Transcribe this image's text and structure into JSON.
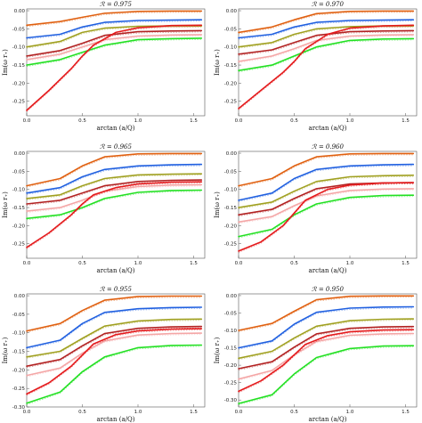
{
  "colors": {
    "red": "#e41a1c",
    "green": "#22e022",
    "pink": "#f4a6a6",
    "olive": "#a0a020",
    "darkred": "#b22222",
    "blue": "#2060e0",
    "orange": "#e06010",
    "black": "#111111"
  },
  "chart_data": [
    {
      "type": "line",
      "title": "ℛ = 0.975",
      "xlabel": "arctan (a/Q)",
      "ylabel": "Im(ω r₊)",
      "xlim": [
        0,
        1.6
      ],
      "ylim": [
        -0.29,
        0.005
      ],
      "xticks": [
        "0.0",
        "0.5",
        "1.0",
        "1.5"
      ],
      "yticks": [
        "0.00",
        "-0.05",
        "-0.10",
        "-0.15",
        "-0.20",
        "-0.25"
      ],
      "ytick_values": [
        0,
        -0.05,
        -0.1,
        -0.15,
        -0.2,
        -0.25
      ],
      "series": [
        {
          "color": "orange",
          "x": [
            0,
            0.3,
            0.5,
            0.7,
            1.0,
            1.3,
            1.57
          ],
          "y": [
            -0.04,
            -0.03,
            -0.018,
            -0.007,
            -0.002,
            -0.001,
            -0.001
          ]
        },
        {
          "color": "blue",
          "x": [
            0,
            0.3,
            0.5,
            0.7,
            1.0,
            1.3,
            1.57
          ],
          "y": [
            -0.075,
            -0.065,
            -0.045,
            -0.032,
            -0.027,
            -0.026,
            -0.025
          ]
        },
        {
          "color": "olive",
          "x": [
            0,
            0.3,
            0.5,
            0.7,
            1.0,
            1.3,
            1.57
          ],
          "y": [
            -0.1,
            -0.085,
            -0.06,
            -0.048,
            -0.043,
            -0.042,
            -0.042
          ]
        },
        {
          "color": "darkred",
          "x": [
            0,
            0.3,
            0.5,
            0.7,
            1.0,
            1.3,
            1.57
          ],
          "y": [
            -0.125,
            -0.11,
            -0.09,
            -0.068,
            -0.058,
            -0.056,
            -0.055
          ]
        },
        {
          "color": "pink",
          "x": [
            0,
            0.3,
            0.5,
            0.7,
            1.0,
            1.3,
            1.57
          ],
          "y": [
            -0.135,
            -0.12,
            -0.1,
            -0.08,
            -0.07,
            -0.067,
            -0.066
          ]
        },
        {
          "color": "green",
          "x": [
            0,
            0.3,
            0.5,
            0.7,
            1.0,
            1.3,
            1.57
          ],
          "y": [
            -0.15,
            -0.135,
            -0.115,
            -0.095,
            -0.08,
            -0.077,
            -0.076
          ]
        },
        {
          "color": "red",
          "x": [
            0,
            0.2,
            0.4,
            0.5,
            0.6,
            0.8,
            1.0,
            1.3,
            1.57
          ],
          "y": [
            -0.275,
            -0.22,
            -0.16,
            -0.125,
            -0.095,
            -0.06,
            -0.047,
            -0.041,
            -0.04
          ]
        }
      ]
    },
    {
      "type": "line",
      "title": "ℛ = 0.970",
      "xlabel": "arctan (a/Q)",
      "ylabel": "Im(ω r₊)",
      "xlim": [
        0,
        1.6
      ],
      "ylim": [
        -0.29,
        0.005
      ],
      "xticks": [
        "0.0",
        "0.5",
        "1.0",
        "1.5"
      ],
      "yticks": [
        "0.00",
        "-0.05",
        "-0.10",
        "-0.15",
        "-0.20",
        "-0.25"
      ],
      "ytick_values": [
        0,
        -0.05,
        -0.1,
        -0.15,
        -0.2,
        -0.25
      ],
      "series": [
        {
          "color": "orange",
          "x": [
            0,
            0.3,
            0.5,
            0.7,
            1.0,
            1.3,
            1.57
          ],
          "y": [
            -0.06,
            -0.045,
            -0.025,
            -0.008,
            -0.002,
            -0.001,
            -0.001
          ]
        },
        {
          "color": "blue",
          "x": [
            0,
            0.3,
            0.5,
            0.7,
            1.0,
            1.3,
            1.57
          ],
          "y": [
            -0.075,
            -0.065,
            -0.045,
            -0.032,
            -0.027,
            -0.026,
            -0.025
          ]
        },
        {
          "color": "olive",
          "x": [
            0,
            0.3,
            0.5,
            0.7,
            1.0,
            1.3,
            1.57
          ],
          "y": [
            -0.1,
            -0.088,
            -0.065,
            -0.05,
            -0.044,
            -0.042,
            -0.042
          ]
        },
        {
          "color": "darkred",
          "x": [
            0,
            0.3,
            0.5,
            0.7,
            1.0,
            1.3,
            1.57
          ],
          "y": [
            -0.12,
            -0.108,
            -0.088,
            -0.068,
            -0.058,
            -0.056,
            -0.055
          ]
        },
        {
          "color": "pink",
          "x": [
            0,
            0.3,
            0.5,
            0.7,
            1.0,
            1.3,
            1.57
          ],
          "y": [
            -0.14,
            -0.125,
            -0.105,
            -0.082,
            -0.07,
            -0.067,
            -0.066
          ]
        },
        {
          "color": "green",
          "x": [
            0,
            0.3,
            0.5,
            0.7,
            1.0,
            1.3,
            1.57
          ],
          "y": [
            -0.165,
            -0.15,
            -0.125,
            -0.1,
            -0.082,
            -0.078,
            -0.077
          ]
        },
        {
          "color": "red",
          "x": [
            0,
            0.2,
            0.4,
            0.5,
            0.6,
            0.8,
            1.0,
            1.3,
            1.57
          ],
          "y": [
            -0.27,
            -0.22,
            -0.17,
            -0.14,
            -0.105,
            -0.065,
            -0.048,
            -0.042,
            -0.04
          ]
        }
      ]
    },
    {
      "type": "line",
      "title": "ℛ = 0.965",
      "xlabel": "arctan (a/Q)",
      "ylabel": "Im(ω r₊)",
      "xlim": [
        0,
        1.6
      ],
      "ylim": [
        -0.29,
        0.005
      ],
      "xticks": [
        "0.0",
        "0.5",
        "1.0",
        "1.5"
      ],
      "yticks": [
        "0.00",
        "-0.05",
        "-0.10",
        "-0.15",
        "-0.20",
        "-0.25"
      ],
      "ytick_values": [
        0,
        -0.05,
        -0.1,
        -0.15,
        -0.2,
        -0.25
      ],
      "series": [
        {
          "color": "orange",
          "x": [
            0,
            0.3,
            0.5,
            0.7,
            1.0,
            1.3,
            1.57
          ],
          "y": [
            -0.09,
            -0.07,
            -0.035,
            -0.01,
            -0.002,
            -0.001,
            -0.001
          ]
        },
        {
          "color": "blue",
          "x": [
            0,
            0.3,
            0.5,
            0.7,
            1.0,
            1.3,
            1.57
          ],
          "y": [
            -0.11,
            -0.095,
            -0.065,
            -0.045,
            -0.035,
            -0.032,
            -0.031
          ]
        },
        {
          "color": "olive",
          "x": [
            0,
            0.3,
            0.5,
            0.7,
            1.0,
            1.3,
            1.57
          ],
          "y": [
            -0.125,
            -0.115,
            -0.09,
            -0.07,
            -0.06,
            -0.058,
            -0.057
          ]
        },
        {
          "color": "darkred",
          "x": [
            0,
            0.3,
            0.5,
            0.7,
            1.0,
            1.3,
            1.57
          ],
          "y": [
            -0.14,
            -0.13,
            -0.11,
            -0.09,
            -0.078,
            -0.075,
            -0.074
          ]
        },
        {
          "color": "pink",
          "x": [
            0,
            0.3,
            0.5,
            0.7,
            1.0,
            1.3,
            1.57
          ],
          "y": [
            -0.16,
            -0.15,
            -0.13,
            -0.105,
            -0.092,
            -0.088,
            -0.087
          ]
        },
        {
          "color": "green",
          "x": [
            0,
            0.3,
            0.5,
            0.7,
            1.0,
            1.3,
            1.57
          ],
          "y": [
            -0.18,
            -0.17,
            -0.15,
            -0.125,
            -0.108,
            -0.103,
            -0.102
          ]
        },
        {
          "color": "red",
          "x": [
            0,
            0.2,
            0.4,
            0.5,
            0.6,
            0.8,
            1.0,
            1.3,
            1.57
          ],
          "y": [
            -0.26,
            -0.22,
            -0.17,
            -0.14,
            -0.115,
            -0.095,
            -0.085,
            -0.08,
            -0.079
          ]
        }
      ]
    },
    {
      "type": "line",
      "title": "ℛ = 0.960",
      "xlabel": "arctan (a/Q)",
      "ylabel": "Im(ω r₊)",
      "xlim": [
        0,
        1.6
      ],
      "ylim": [
        -0.29,
        0.005
      ],
      "xticks": [
        "0.0",
        "0.5",
        "1.0",
        "1.5"
      ],
      "yticks": [
        "0.00",
        "-0.05",
        "-0.10",
        "-0.15",
        "-0.20",
        "-0.25"
      ],
      "ytick_values": [
        0,
        -0.05,
        -0.1,
        -0.15,
        -0.2,
        -0.25
      ],
      "series": [
        {
          "color": "orange",
          "x": [
            0,
            0.3,
            0.5,
            0.7,
            1.0,
            1.3,
            1.57
          ],
          "y": [
            -0.09,
            -0.07,
            -0.035,
            -0.01,
            -0.002,
            -0.001,
            -0.001
          ]
        },
        {
          "color": "blue",
          "x": [
            0,
            0.3,
            0.5,
            0.7,
            1.0,
            1.3,
            1.57
          ],
          "y": [
            -0.13,
            -0.11,
            -0.07,
            -0.045,
            -0.035,
            -0.032,
            -0.031
          ]
        },
        {
          "color": "olive",
          "x": [
            0,
            0.3,
            0.5,
            0.7,
            1.0,
            1.3,
            1.57
          ],
          "y": [
            -0.15,
            -0.135,
            -0.105,
            -0.078,
            -0.065,
            -0.062,
            -0.061
          ]
        },
        {
          "color": "darkred",
          "x": [
            0,
            0.3,
            0.5,
            0.7,
            1.0,
            1.3,
            1.57
          ],
          "y": [
            -0.17,
            -0.155,
            -0.125,
            -0.098,
            -0.085,
            -0.082,
            -0.081
          ]
        },
        {
          "color": "pink",
          "x": [
            0,
            0.3,
            0.5,
            0.7,
            1.0,
            1.3,
            1.57
          ],
          "y": [
            -0.19,
            -0.175,
            -0.145,
            -0.118,
            -0.103,
            -0.099,
            -0.098
          ]
        },
        {
          "color": "green",
          "x": [
            0,
            0.3,
            0.5,
            0.7,
            1.0,
            1.3,
            1.57
          ],
          "y": [
            -0.23,
            -0.21,
            -0.17,
            -0.14,
            -0.122,
            -0.117,
            -0.116
          ]
        },
        {
          "color": "red",
          "x": [
            0,
            0.2,
            0.4,
            0.5,
            0.6,
            0.8,
            1.0,
            1.3,
            1.57
          ],
          "y": [
            -0.27,
            -0.245,
            -0.2,
            -0.165,
            -0.13,
            -0.1,
            -0.088,
            -0.082,
            -0.081
          ]
        }
      ]
    },
    {
      "type": "line",
      "title": "ℛ = 0.955",
      "xlabel": "arctan (a/Q)",
      "ylabel": "Im(ω r₊)",
      "xlim": [
        0,
        1.6
      ],
      "ylim": [
        -0.3,
        0.005
      ],
      "xticks": [
        "0.0",
        "0.5",
        "1.0",
        "1.5"
      ],
      "yticks": [
        "0.00",
        "-0.05",
        "-0.10",
        "-0.15",
        "-0.20",
        "-0.25",
        "-0.30"
      ],
      "ytick_values": [
        0,
        -0.05,
        -0.1,
        -0.15,
        -0.2,
        -0.25,
        -0.3
      ],
      "series": [
        {
          "color": "orange",
          "x": [
            0,
            0.3,
            0.5,
            0.7,
            1.0,
            1.3,
            1.57
          ],
          "y": [
            -0.095,
            -0.075,
            -0.04,
            -0.012,
            -0.002,
            -0.001,
            -0.001
          ]
        },
        {
          "color": "blue",
          "x": [
            0,
            0.3,
            0.5,
            0.7,
            1.0,
            1.3,
            1.57
          ],
          "y": [
            -0.14,
            -0.12,
            -0.075,
            -0.045,
            -0.035,
            -0.032,
            -0.031
          ]
        },
        {
          "color": "olive",
          "x": [
            0,
            0.3,
            0.5,
            0.7,
            1.0,
            1.3,
            1.57
          ],
          "y": [
            -0.165,
            -0.15,
            -0.115,
            -0.082,
            -0.068,
            -0.064,
            -0.063
          ]
        },
        {
          "color": "darkred",
          "x": [
            0,
            0.3,
            0.5,
            0.7,
            1.0,
            1.3,
            1.57
          ],
          "y": [
            -0.19,
            -0.172,
            -0.135,
            -0.102,
            -0.088,
            -0.084,
            -0.083
          ]
        },
        {
          "color": "pink",
          "x": [
            0,
            0.3,
            0.5,
            0.7,
            1.0,
            1.3,
            1.57
          ],
          "y": [
            -0.215,
            -0.195,
            -0.155,
            -0.122,
            -0.106,
            -0.102,
            -0.101
          ]
        },
        {
          "color": "red",
          "x": [
            0,
            0.2,
            0.4,
            0.5,
            0.6,
            0.8,
            1.0,
            1.3,
            1.57
          ],
          "y": [
            -0.265,
            -0.235,
            -0.19,
            -0.16,
            -0.13,
            -0.105,
            -0.095,
            -0.09,
            -0.089
          ]
        },
        {
          "color": "green",
          "x": [
            0,
            0.3,
            0.5,
            0.7,
            1.0,
            1.3,
            1.57
          ],
          "y": [
            -0.29,
            -0.26,
            -0.205,
            -0.165,
            -0.14,
            -0.134,
            -0.133
          ]
        }
      ]
    },
    {
      "type": "line",
      "title": "ℛ = 0.950",
      "xlabel": "arctan (a/Q)",
      "ylabel": "Im(ω r₊)",
      "xlim": [
        0,
        1.6
      ],
      "ylim": [
        -0.32,
        0.005
      ],
      "xticks": [
        "0.0",
        "0.5",
        "1.0",
        "1.5"
      ],
      "yticks": [
        "0.00",
        "-0.05",
        "-0.10",
        "-0.15",
        "-0.20",
        "-0.25",
        "-0.30"
      ],
      "ytick_values": [
        0,
        -0.05,
        -0.1,
        -0.15,
        -0.2,
        -0.25,
        -0.3
      ],
      "series": [
        {
          "color": "orange",
          "x": [
            0,
            0.3,
            0.5,
            0.7,
            1.0,
            1.3,
            1.57
          ],
          "y": [
            -0.1,
            -0.08,
            -0.045,
            -0.012,
            -0.002,
            -0.001,
            -0.001
          ]
        },
        {
          "color": "blue",
          "x": [
            0,
            0.3,
            0.5,
            0.7,
            1.0,
            1.3,
            1.57
          ],
          "y": [
            -0.15,
            -0.13,
            -0.082,
            -0.048,
            -0.036,
            -0.033,
            -0.032
          ]
        },
        {
          "color": "olive",
          "x": [
            0,
            0.3,
            0.5,
            0.7,
            1.0,
            1.3,
            1.57
          ],
          "y": [
            -0.18,
            -0.16,
            -0.122,
            -0.088,
            -0.072,
            -0.068,
            -0.067
          ]
        },
        {
          "color": "darkred",
          "x": [
            0,
            0.3,
            0.5,
            0.7,
            1.0,
            1.3,
            1.57
          ],
          "y": [
            -0.21,
            -0.19,
            -0.148,
            -0.11,
            -0.094,
            -0.09,
            -0.089
          ]
        },
        {
          "color": "pink",
          "x": [
            0,
            0.3,
            0.5,
            0.7,
            1.0,
            1.3,
            1.57
          ],
          "y": [
            -0.24,
            -0.215,
            -0.17,
            -0.132,
            -0.114,
            -0.11,
            -0.109
          ]
        },
        {
          "color": "red",
          "x": [
            0,
            0.2,
            0.4,
            0.5,
            0.6,
            0.8,
            1.0,
            1.3,
            1.57
          ],
          "y": [
            -0.275,
            -0.245,
            -0.2,
            -0.17,
            -0.14,
            -0.115,
            -0.104,
            -0.099,
            -0.098
          ]
        },
        {
          "color": "green",
          "x": [
            0,
            0.3,
            0.5,
            0.7,
            1.0,
            1.3,
            1.57
          ],
          "y": [
            -0.31,
            -0.285,
            -0.225,
            -0.178,
            -0.152,
            -0.145,
            -0.144
          ]
        }
      ]
    }
  ]
}
